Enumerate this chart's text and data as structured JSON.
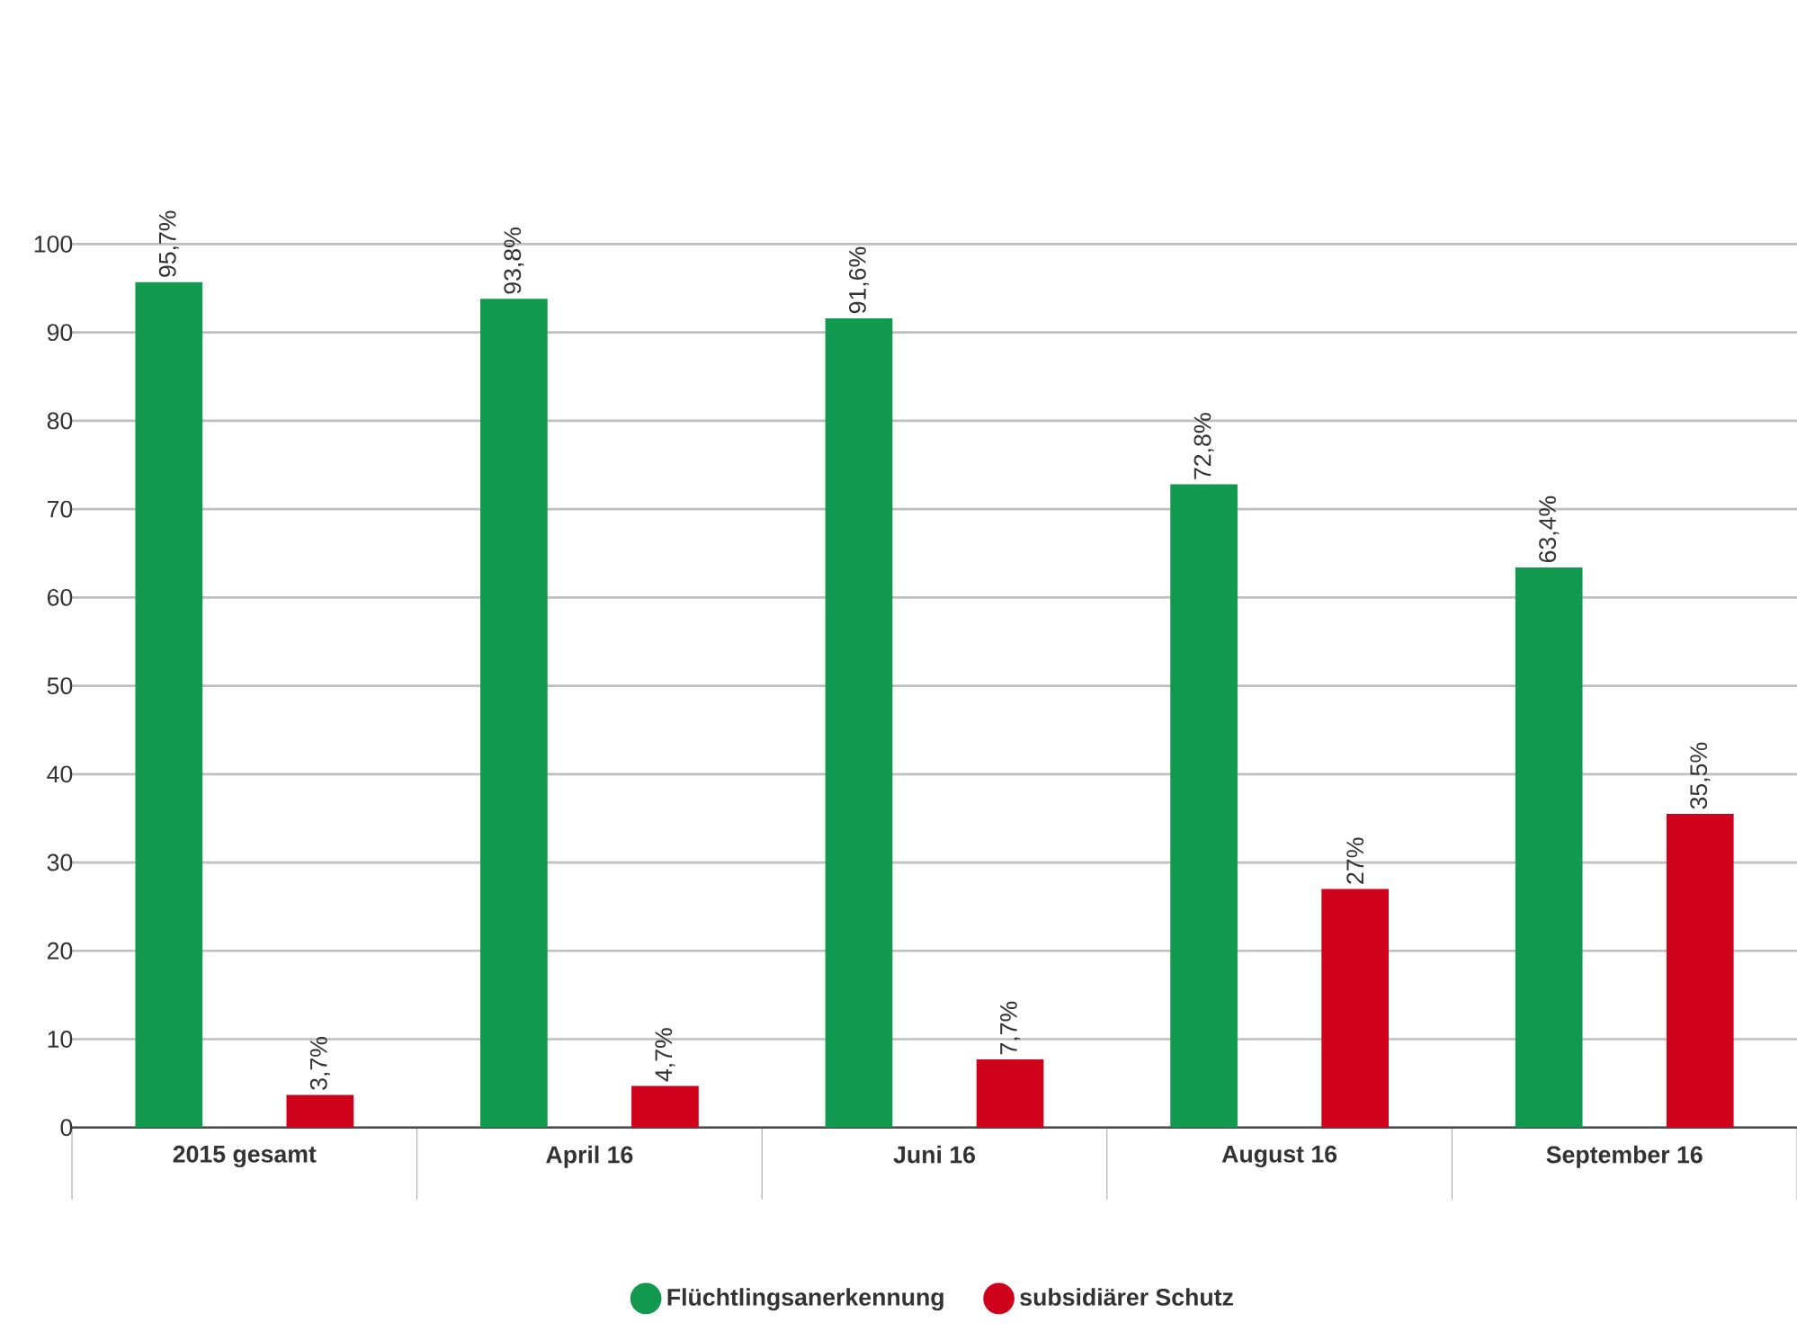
{
  "chart_data": {
    "type": "bar",
    "categories": [
      "2015 gesamt",
      "April 16",
      "Juni 16",
      "August 16",
      "September 16"
    ],
    "series": [
      {
        "name": "Flüchtlingsanerkennung",
        "color": "#119a4f",
        "values": [
          95.7,
          93.8,
          91.6,
          72.8,
          63.4
        ],
        "value_labels": [
          "95,7%",
          "93,8%",
          "91,6%",
          "72,8%",
          "63,4%"
        ]
      },
      {
        "name": "subsidiärer Schutz",
        "color": "#d0021b",
        "values": [
          3.7,
          4.7,
          7.7,
          27,
          35.5
        ],
        "value_labels": [
          "3,7%",
          "4,7%",
          "7,7%",
          "27%",
          "35,5%"
        ]
      }
    ],
    "ylim": [
      0,
      100
    ],
    "yticks": [
      0,
      10,
      20,
      30,
      40,
      50,
      60,
      70,
      80,
      90,
      100
    ],
    "grid": "y",
    "legend": "bottom"
  }
}
